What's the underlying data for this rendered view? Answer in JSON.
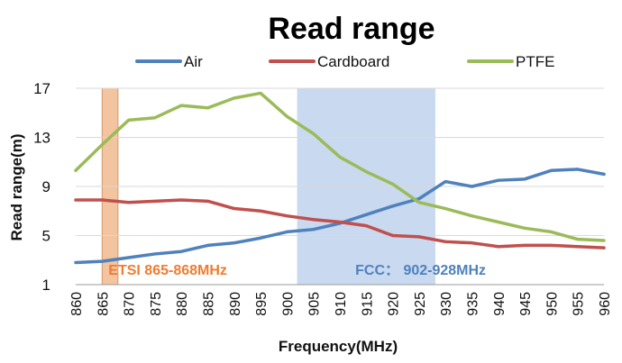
{
  "chart_data": {
    "type": "line",
    "title": "Read range",
    "xlabel": "Frequency(MHz)",
    "ylabel": "Read range(m)",
    "ylim": [
      1,
      17
    ],
    "yticks": [
      1,
      5,
      9,
      13,
      17
    ],
    "x": [
      860,
      865,
      870,
      875,
      880,
      885,
      890,
      895,
      900,
      905,
      910,
      915,
      920,
      925,
      930,
      935,
      940,
      945,
      950,
      955,
      960
    ],
    "grid": "horizontal",
    "legend_position": "top",
    "series": [
      {
        "name": "Air",
        "color": "#4f81bd",
        "values": [
          2.8,
          2.9,
          3.2,
          3.5,
          3.7,
          4.2,
          4.4,
          4.8,
          5.3,
          5.5,
          6.0,
          6.7,
          7.4,
          8.0,
          9.4,
          9.0,
          9.5,
          9.6,
          10.3,
          10.4,
          10.0
        ]
      },
      {
        "name": "Cardboard",
        "color": "#c0504d",
        "values": [
          7.9,
          7.9,
          7.7,
          7.8,
          7.9,
          7.8,
          7.2,
          7.0,
          6.6,
          6.3,
          6.1,
          5.8,
          5.0,
          4.9,
          4.5,
          4.4,
          4.1,
          4.2,
          4.2,
          4.1,
          4.0
        ]
      },
      {
        "name": "PTFE",
        "color": "#9bbb59",
        "values": [
          10.3,
          12.4,
          14.4,
          14.6,
          15.6,
          15.4,
          16.2,
          16.6,
          14.7,
          13.3,
          11.4,
          10.2,
          9.2,
          7.7,
          7.2,
          6.6,
          6.1,
          5.6,
          5.3,
          4.7,
          4.6
        ]
      }
    ],
    "bands": [
      {
        "label": "ETSI 865-868MHz",
        "from": 865,
        "to": 868,
        "fill": "#f2c4a0",
        "stroke": "#d89a6a",
        "text_color": "#ed7d31"
      },
      {
        "label": "FCC： 902-928MHz",
        "from": 902,
        "to": 928,
        "fill": "#c9d9ef",
        "stroke": "#c9d9ef",
        "text_color": "#4f81bd"
      }
    ]
  }
}
